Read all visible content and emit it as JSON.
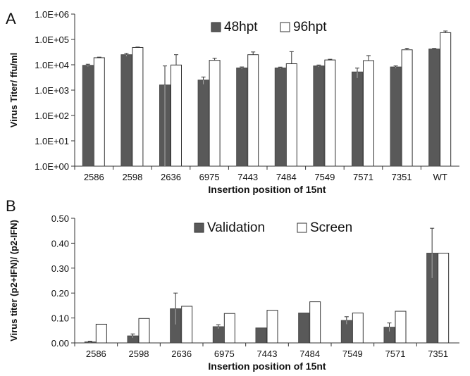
{
  "chart_data": [
    {
      "panel_label": "A",
      "type": "bar",
      "scale": "log",
      "ylim": [
        1,
        1000000
      ],
      "yticks": [
        "1.0E+00",
        "1.0E+01",
        "1.0E+02",
        "1.0E+03",
        "1.0E+04",
        "1.0E+05",
        "1.0E+06"
      ],
      "ylabel": "Virus Titer/ ffu/ml",
      "xlabel": "Insertion position of 15nt",
      "categories": [
        "2586",
        "2598",
        "2636",
        "6975",
        "7443",
        "7484",
        "7549",
        "7571",
        "7351",
        "WT"
      ],
      "series": [
        {
          "name": "48hpt",
          "color": "#595959",
          "values": [
            9500,
            25000,
            1600,
            2500,
            7500,
            7500,
            9000,
            5200,
            8200,
            42000
          ],
          "errors": [
            1000,
            3000,
            7400,
            800,
            700,
            600,
            800,
            2200,
            800,
            2000
          ]
        },
        {
          "name": "96hpt",
          "color": "#ffffff",
          "values": [
            19000,
            48000,
            9800,
            15000,
            25000,
            11000,
            15500,
            14500,
            39000,
            185000
          ],
          "errors": [
            1000,
            2000,
            15200,
            3000,
            7000,
            22000,
            1000,
            8500,
            6000,
            30000
          ]
        }
      ],
      "legend": "top-center",
      "grid": false
    },
    {
      "panel_label": "B",
      "type": "bar",
      "ylim": [
        0,
        0.5
      ],
      "yticks": [
        "0.00",
        "0.10",
        "0.20",
        "0.30",
        "0.40",
        "0.50"
      ],
      "ylabel": "Virus titer (p2+IFN)/ (p2-IFN)",
      "xlabel": "Insertion position of 15nt",
      "categories": [
        "2586",
        "2598",
        "2636",
        "6975",
        "7443",
        "7484",
        "7549",
        "7571",
        "7351"
      ],
      "series": [
        {
          "name": "Validation",
          "color": "#595959",
          "values": [
            0.004,
            0.028,
            0.137,
            0.065,
            0.06,
            0.12,
            0.09,
            0.063,
            0.36
          ],
          "errors": [
            0.003,
            0.008,
            0.063,
            0.008,
            0.0,
            0.0,
            0.015,
            0.017,
            0.1
          ]
        },
        {
          "name": "Screen",
          "color": "#ffffff",
          "values": [
            0.075,
            0.098,
            0.147,
            0.118,
            0.131,
            0.165,
            0.12,
            0.127,
            0.36
          ],
          "errors": [
            0,
            0,
            0,
            0,
            0,
            0,
            0,
            0,
            0
          ]
        }
      ],
      "legend": "top-center",
      "grid": false
    }
  ]
}
